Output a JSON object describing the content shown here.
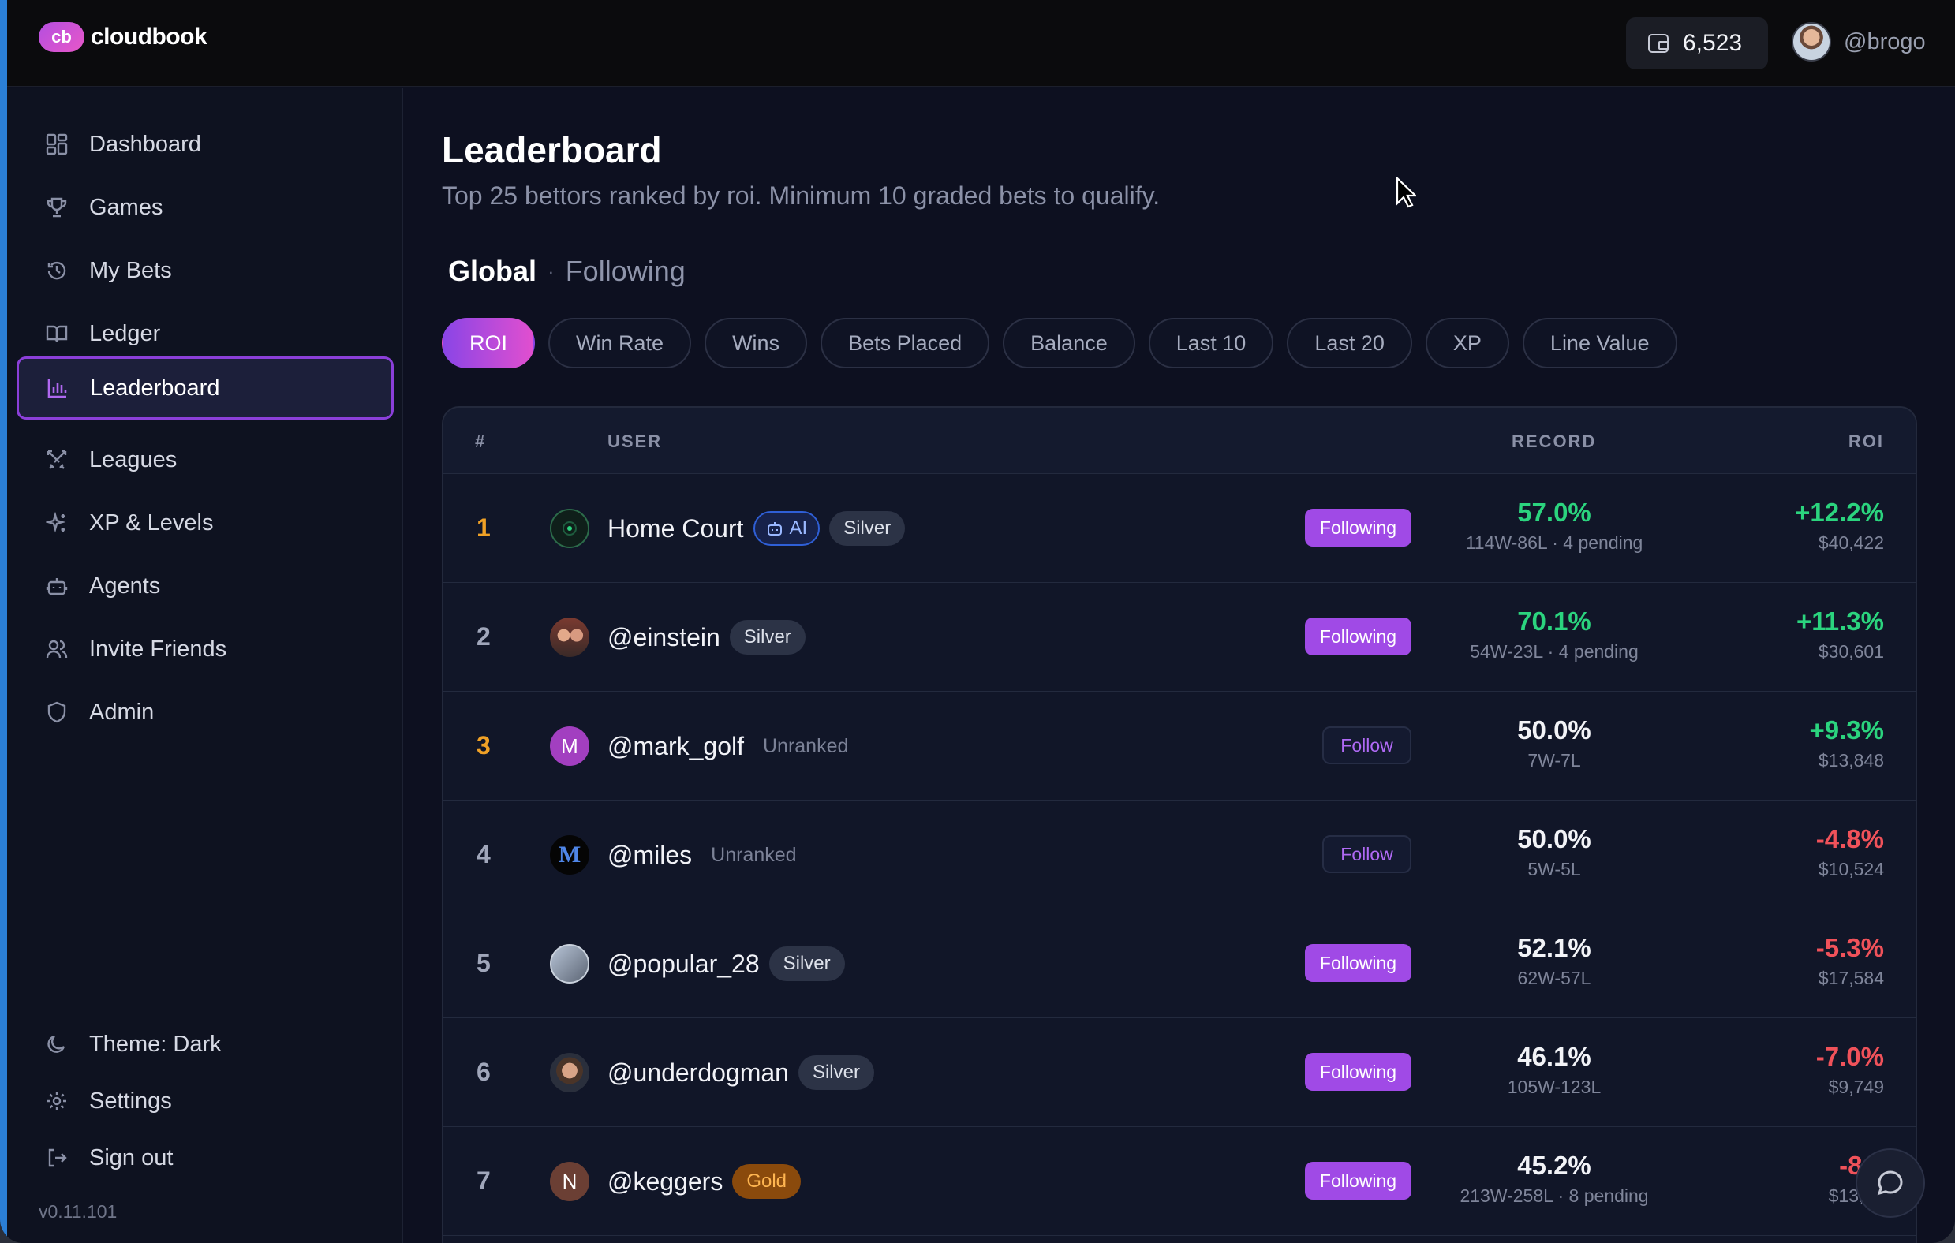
{
  "app": {
    "logo_mark": "cb",
    "name": "cloudbook"
  },
  "topbar": {
    "balance": "6,523",
    "user_handle": "@brogo"
  },
  "sidebar": {
    "items": [
      {
        "label": "Dashboard",
        "icon": "dashboard-icon"
      },
      {
        "label": "Games",
        "icon": "trophy-icon"
      },
      {
        "label": "My Bets",
        "icon": "history-icon"
      },
      {
        "label": "Ledger",
        "icon": "book-icon"
      },
      {
        "label": "Leaderboard",
        "icon": "bar-chart-icon",
        "active": true
      },
      {
        "label": "Leagues",
        "icon": "swords-icon"
      },
      {
        "label": "XP & Levels",
        "icon": "sparkles-icon"
      },
      {
        "label": "Agents",
        "icon": "bot-icon"
      },
      {
        "label": "Invite Friends",
        "icon": "users-icon"
      },
      {
        "label": "Admin",
        "icon": "shield-icon"
      }
    ],
    "bottom": [
      {
        "label": "Theme: Dark",
        "icon": "moon-icon"
      },
      {
        "label": "Settings",
        "icon": "gear-icon"
      },
      {
        "label": "Sign out",
        "icon": "sign-out-icon"
      }
    ],
    "version": "v0.11.101"
  },
  "main": {
    "title": "Leaderboard",
    "subtitle": "Top 25 bettors ranked by roi. Minimum 10 graded bets to qualify.",
    "scope": {
      "global": "Global",
      "separator": "·",
      "following": "Following"
    },
    "filters": [
      "ROI",
      "Win Rate",
      "Wins",
      "Bets Placed",
      "Balance",
      "Last 10",
      "Last 20",
      "XP",
      "Line Value"
    ],
    "active_filter": "ROI",
    "table": {
      "headers": {
        "rank": "#",
        "user": "USER",
        "record": "RECORD",
        "roi": "ROI"
      },
      "rows": [
        {
          "rank": "1",
          "name": "Home Court",
          "ai": "AI",
          "tier": "Silver",
          "follow": "Following",
          "win_pct": "57.0%",
          "record": "114W-86L · 4 pending",
          "roi": "+12.2%",
          "amount": "$40,422"
        },
        {
          "rank": "2",
          "name": "@einstein",
          "tier": "Silver",
          "follow": "Following",
          "win_pct": "70.1%",
          "record": "54W-23L · 4 pending",
          "roi": "+11.3%",
          "amount": "$30,601"
        },
        {
          "rank": "3",
          "name": "@mark_golf",
          "avatar_letter": "M",
          "tier": "Unranked",
          "follow": "Follow",
          "win_pct": "50.0%",
          "record": "7W-7L",
          "roi": "+9.3%",
          "amount": "$13,848"
        },
        {
          "rank": "4",
          "name": "@miles",
          "avatar_letter": "M",
          "tier": "Unranked",
          "follow": "Follow",
          "win_pct": "50.0%",
          "record": "5W-5L",
          "roi": "-4.8%",
          "amount": "$10,524"
        },
        {
          "rank": "5",
          "name": "@popular_28",
          "tier": "Silver",
          "follow": "Following",
          "win_pct": "52.1%",
          "record": "62W-57L",
          "roi": "-5.3%",
          "amount": "$17,584"
        },
        {
          "rank": "6",
          "name": "@underdogman",
          "tier": "Silver",
          "follow": "Following",
          "win_pct": "46.1%",
          "record": "105W-123L",
          "roi": "-7.0%",
          "amount": "$9,749"
        },
        {
          "rank": "7",
          "name": "@keggers",
          "avatar_letter": "N",
          "tier": "Gold",
          "follow": "Following",
          "win_pct": "45.2%",
          "record": "213W-258L · 8 pending",
          "roi": "-8.6",
          "amount": "$13,69"
        }
      ]
    }
  },
  "colors": {
    "accent": "#a04ae6",
    "positive": "#2bd47e",
    "negative": "#f0525a",
    "gold_rank": "#f0a126"
  }
}
